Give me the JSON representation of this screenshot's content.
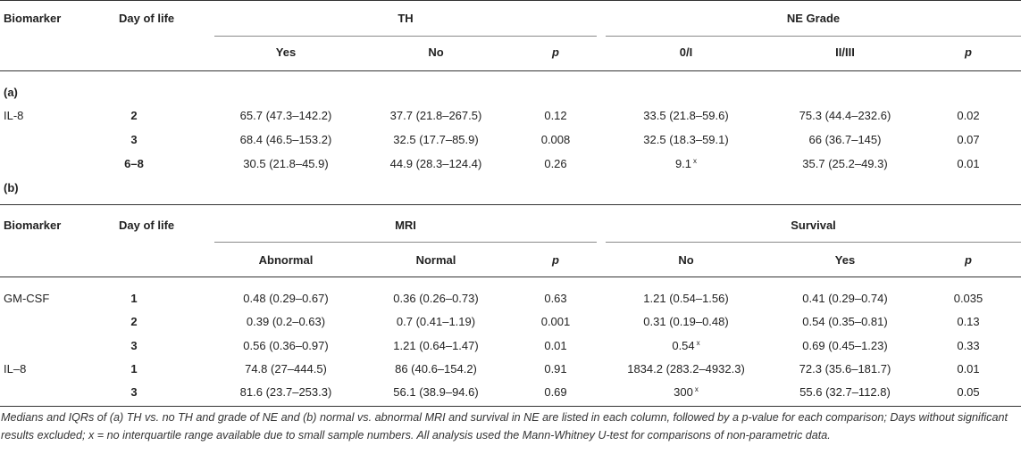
{
  "part_a": {
    "header": {
      "biomarker": "Biomarker",
      "day": "Day of life",
      "group1": "TH",
      "group2": "NE Grade",
      "sub": [
        "Yes",
        "No",
        "p",
        "0/I",
        "II/III",
        "p"
      ]
    },
    "section_label": "(a)",
    "rows": [
      {
        "marker": "IL-8",
        "day": "2",
        "c1": "65.7 (47.3–142.2)",
        "c2": "37.7 (21.8–267.5)",
        "c3": "0.12",
        "c4": "33.5 (21.8–59.6)",
        "c5": "75.3 (44.4–232.6)",
        "c6": "0.02"
      },
      {
        "marker": "",
        "day": "3",
        "c1": "68.4 (46.5–153.2)",
        "c2": "32.5 (17.7–85.9)",
        "c3": "0.008",
        "c4": "32.5 (18.3–59.1)",
        "c5": "66 (36.7–145)",
        "c6": "0.07"
      },
      {
        "marker": "",
        "day": "6–8",
        "c1": "30.5 (21.8–45.9)",
        "c2": "44.9 (28.3–124.4)",
        "c3": "0.26",
        "c4": "9.1",
        "c4_sup": "x",
        "c5": "35.7 (25.2–49.3)",
        "c6": "0.01"
      }
    ]
  },
  "part_b": {
    "section_label": "(b)",
    "header": {
      "biomarker": "Biomarker",
      "day": "Day of life",
      "group1": "MRI",
      "group2": "Survival",
      "sub": [
        "Abnormal",
        "Normal",
        "p",
        "No",
        "Yes",
        "p"
      ]
    },
    "rows": [
      {
        "marker": "GM-CSF",
        "day": "1",
        "c1": "0.48 (0.29–0.67)",
        "c2": "0.36 (0.26–0.73)",
        "c3": "0.63",
        "c4": "1.21 (0.54–1.56)",
        "c5": "0.41 (0.29–0.74)",
        "c6": "0.035"
      },
      {
        "marker": "",
        "day": "2",
        "c1": "0.39 (0.2–0.63)",
        "c2": "0.7 (0.41–1.19)",
        "c3": "0.001",
        "c4": "0.31 (0.19–0.48)",
        "c5": "0.54 (0.35–0.81)",
        "c6": "0.13"
      },
      {
        "marker": "",
        "day": "3",
        "c1": "0.56 (0.36–0.97)",
        "c2": "1.21 (0.64–1.47)",
        "c3": "0.01",
        "c4": "0.54",
        "c4_sup": "x",
        "c5": "0.69 (0.45–1.23)",
        "c6": "0.33"
      },
      {
        "marker": "IL–8",
        "day": "1",
        "c1": "74.8 (27–444.5)",
        "c2": "86 (40.6–154.2)",
        "c3": "0.91",
        "c4": "1834.2 (283.2–4932.3)",
        "c5": "72.3 (35.6–181.7)",
        "c6": "0.01"
      },
      {
        "marker": "",
        "day": "3",
        "c1": "81.6 (23.7–253.3)",
        "c2": "56.1 (38.9–94.6)",
        "c3": "0.69",
        "c4": "300",
        "c4_sup": "x",
        "c5": "55.6 (32.7–112.8)",
        "c6": "0.05"
      }
    ]
  },
  "caption": "Medians and IQRs of (a) TH vs. no TH and grade of NE and (b) normal vs. abnormal MRI and survival in NE are listed in each column, followed by a p-value for each comparison; Days without significant results excluded; x = no interquartile range available due to small sample numbers. All analysis used the Mann-Whitney U-test for comparisons of non-parametric data."
}
